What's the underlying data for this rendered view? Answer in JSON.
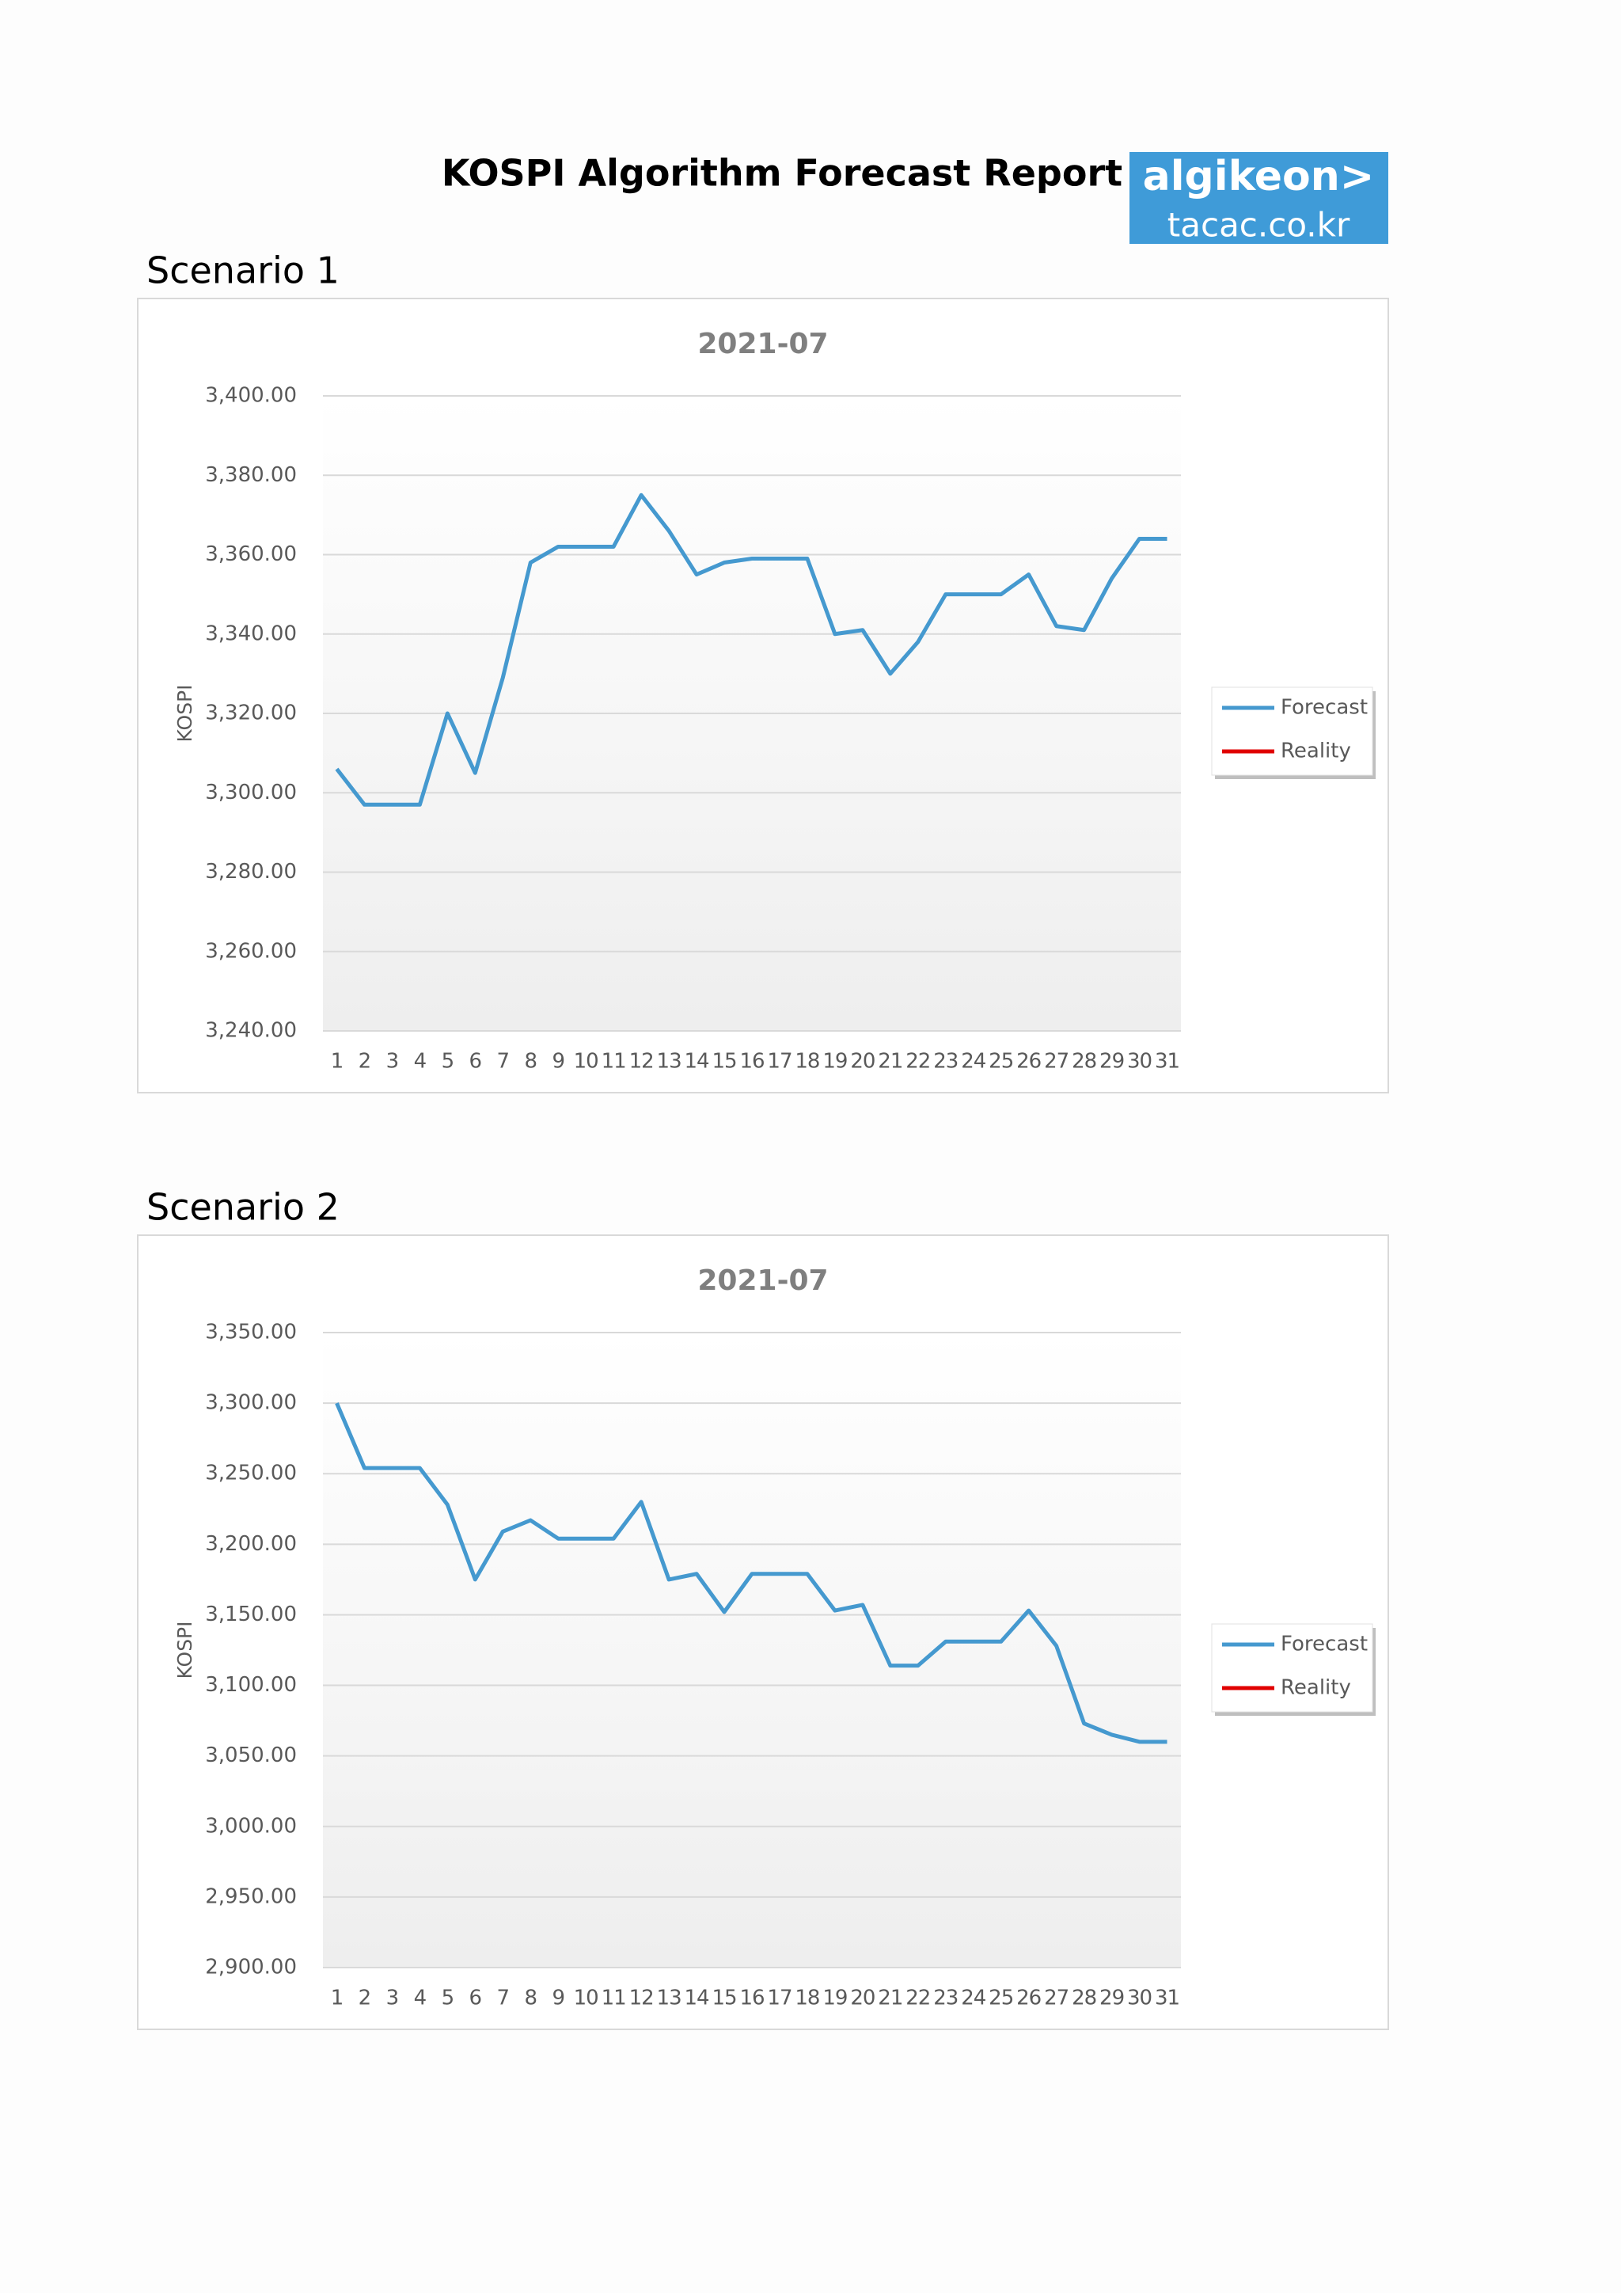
{
  "title": "KOSPI Algorithm Forecast Report",
  "logo": {
    "brand": "algikeon>",
    "site": "tacac.co.kr"
  },
  "chart_data": [
    {
      "type": "line",
      "heading": "Scenario 1",
      "title": "2021-07",
      "y_label": "KOSPI",
      "categories": [
        "1",
        "2",
        "3",
        "4",
        "5",
        "6",
        "7",
        "8",
        "9",
        "10",
        "11",
        "12",
        "13",
        "14",
        "15",
        "16",
        "17",
        "18",
        "19",
        "20",
        "21",
        "22",
        "23",
        "24",
        "25",
        "26",
        "27",
        "28",
        "29",
        "30",
        "31"
      ],
      "series": [
        {
          "name": "Forecast",
          "color": "#4599cf",
          "values": [
            3306,
            3297,
            3297,
            3297,
            3320,
            3305,
            3329,
            3358,
            3362,
            3362,
            3362,
            3375,
            3366,
            3355,
            3358,
            3359,
            3359,
            3359,
            3340,
            3341,
            3330,
            3338,
            3350,
            3350,
            3350,
            3355,
            3342,
            3341,
            3354,
            3364,
            3364
          ]
        },
        {
          "name": "Reality",
          "color": "#e00000",
          "values": [
            null,
            null,
            null,
            null,
            null,
            null,
            null,
            null,
            null,
            null,
            null,
            null,
            null,
            null,
            null,
            null,
            null,
            null,
            null,
            null,
            null,
            null,
            null,
            null,
            null,
            null,
            null,
            null,
            null,
            null,
            null
          ]
        }
      ],
      "ylim": [
        3240,
        3400
      ],
      "yticks": [
        {
          "value": 3240,
          "label": "3,240.00"
        },
        {
          "value": 3260,
          "label": "3,260.00"
        },
        {
          "value": 3280,
          "label": "3,280.00"
        },
        {
          "value": 3300,
          "label": "3,300.00"
        },
        {
          "value": 3320,
          "label": "3,320.00"
        },
        {
          "value": 3340,
          "label": "3,340.00"
        },
        {
          "value": 3360,
          "label": "3,360.00"
        },
        {
          "value": 3380,
          "label": "3,380.00"
        },
        {
          "value": 3400,
          "label": "3,400.00"
        }
      ],
      "grid": true,
      "legend": "right"
    },
    {
      "type": "line",
      "heading": "Scenario 2",
      "title": "2021-07",
      "y_label": "KOSPI",
      "categories": [
        "1",
        "2",
        "3",
        "4",
        "5",
        "6",
        "7",
        "8",
        "9",
        "10",
        "11",
        "12",
        "13",
        "14",
        "15",
        "16",
        "17",
        "18",
        "19",
        "20",
        "21",
        "22",
        "23",
        "24",
        "25",
        "26",
        "27",
        "28",
        "29",
        "30",
        "31"
      ],
      "series": [
        {
          "name": "Forecast",
          "color": "#4599cf",
          "values": [
            3300,
            3254,
            3254,
            3254,
            3228,
            3175,
            3209,
            3217,
            3204,
            3204,
            3204,
            3230,
            3175,
            3179,
            3152,
            3179,
            3179,
            3179,
            3153,
            3157,
            3114,
            3114,
            3131,
            3131,
            3131,
            3153,
            3128,
            3073,
            3065,
            3060,
            3060
          ]
        },
        {
          "name": "Reality",
          "color": "#e00000",
          "values": [
            null,
            null,
            null,
            null,
            null,
            null,
            null,
            null,
            null,
            null,
            null,
            null,
            null,
            null,
            null,
            null,
            null,
            null,
            null,
            null,
            null,
            null,
            null,
            null,
            null,
            null,
            null,
            null,
            null,
            null,
            null
          ]
        }
      ],
      "ylim": [
        2900,
        3350
      ],
      "yticks": [
        {
          "value": 2900,
          "label": "2,900.00"
        },
        {
          "value": 2950,
          "label": "2,950.00"
        },
        {
          "value": 3000,
          "label": "3,000.00"
        },
        {
          "value": 3050,
          "label": "3,050.00"
        },
        {
          "value": 3100,
          "label": "3,100.00"
        },
        {
          "value": 3150,
          "label": "3,150.00"
        },
        {
          "value": 3200,
          "label": "3,200.00"
        },
        {
          "value": 3250,
          "label": "3,250.00"
        },
        {
          "value": 3300,
          "label": "3,300.00"
        },
        {
          "value": 3350,
          "label": "3,350.00"
        }
      ],
      "grid": true,
      "legend": "right"
    }
  ]
}
